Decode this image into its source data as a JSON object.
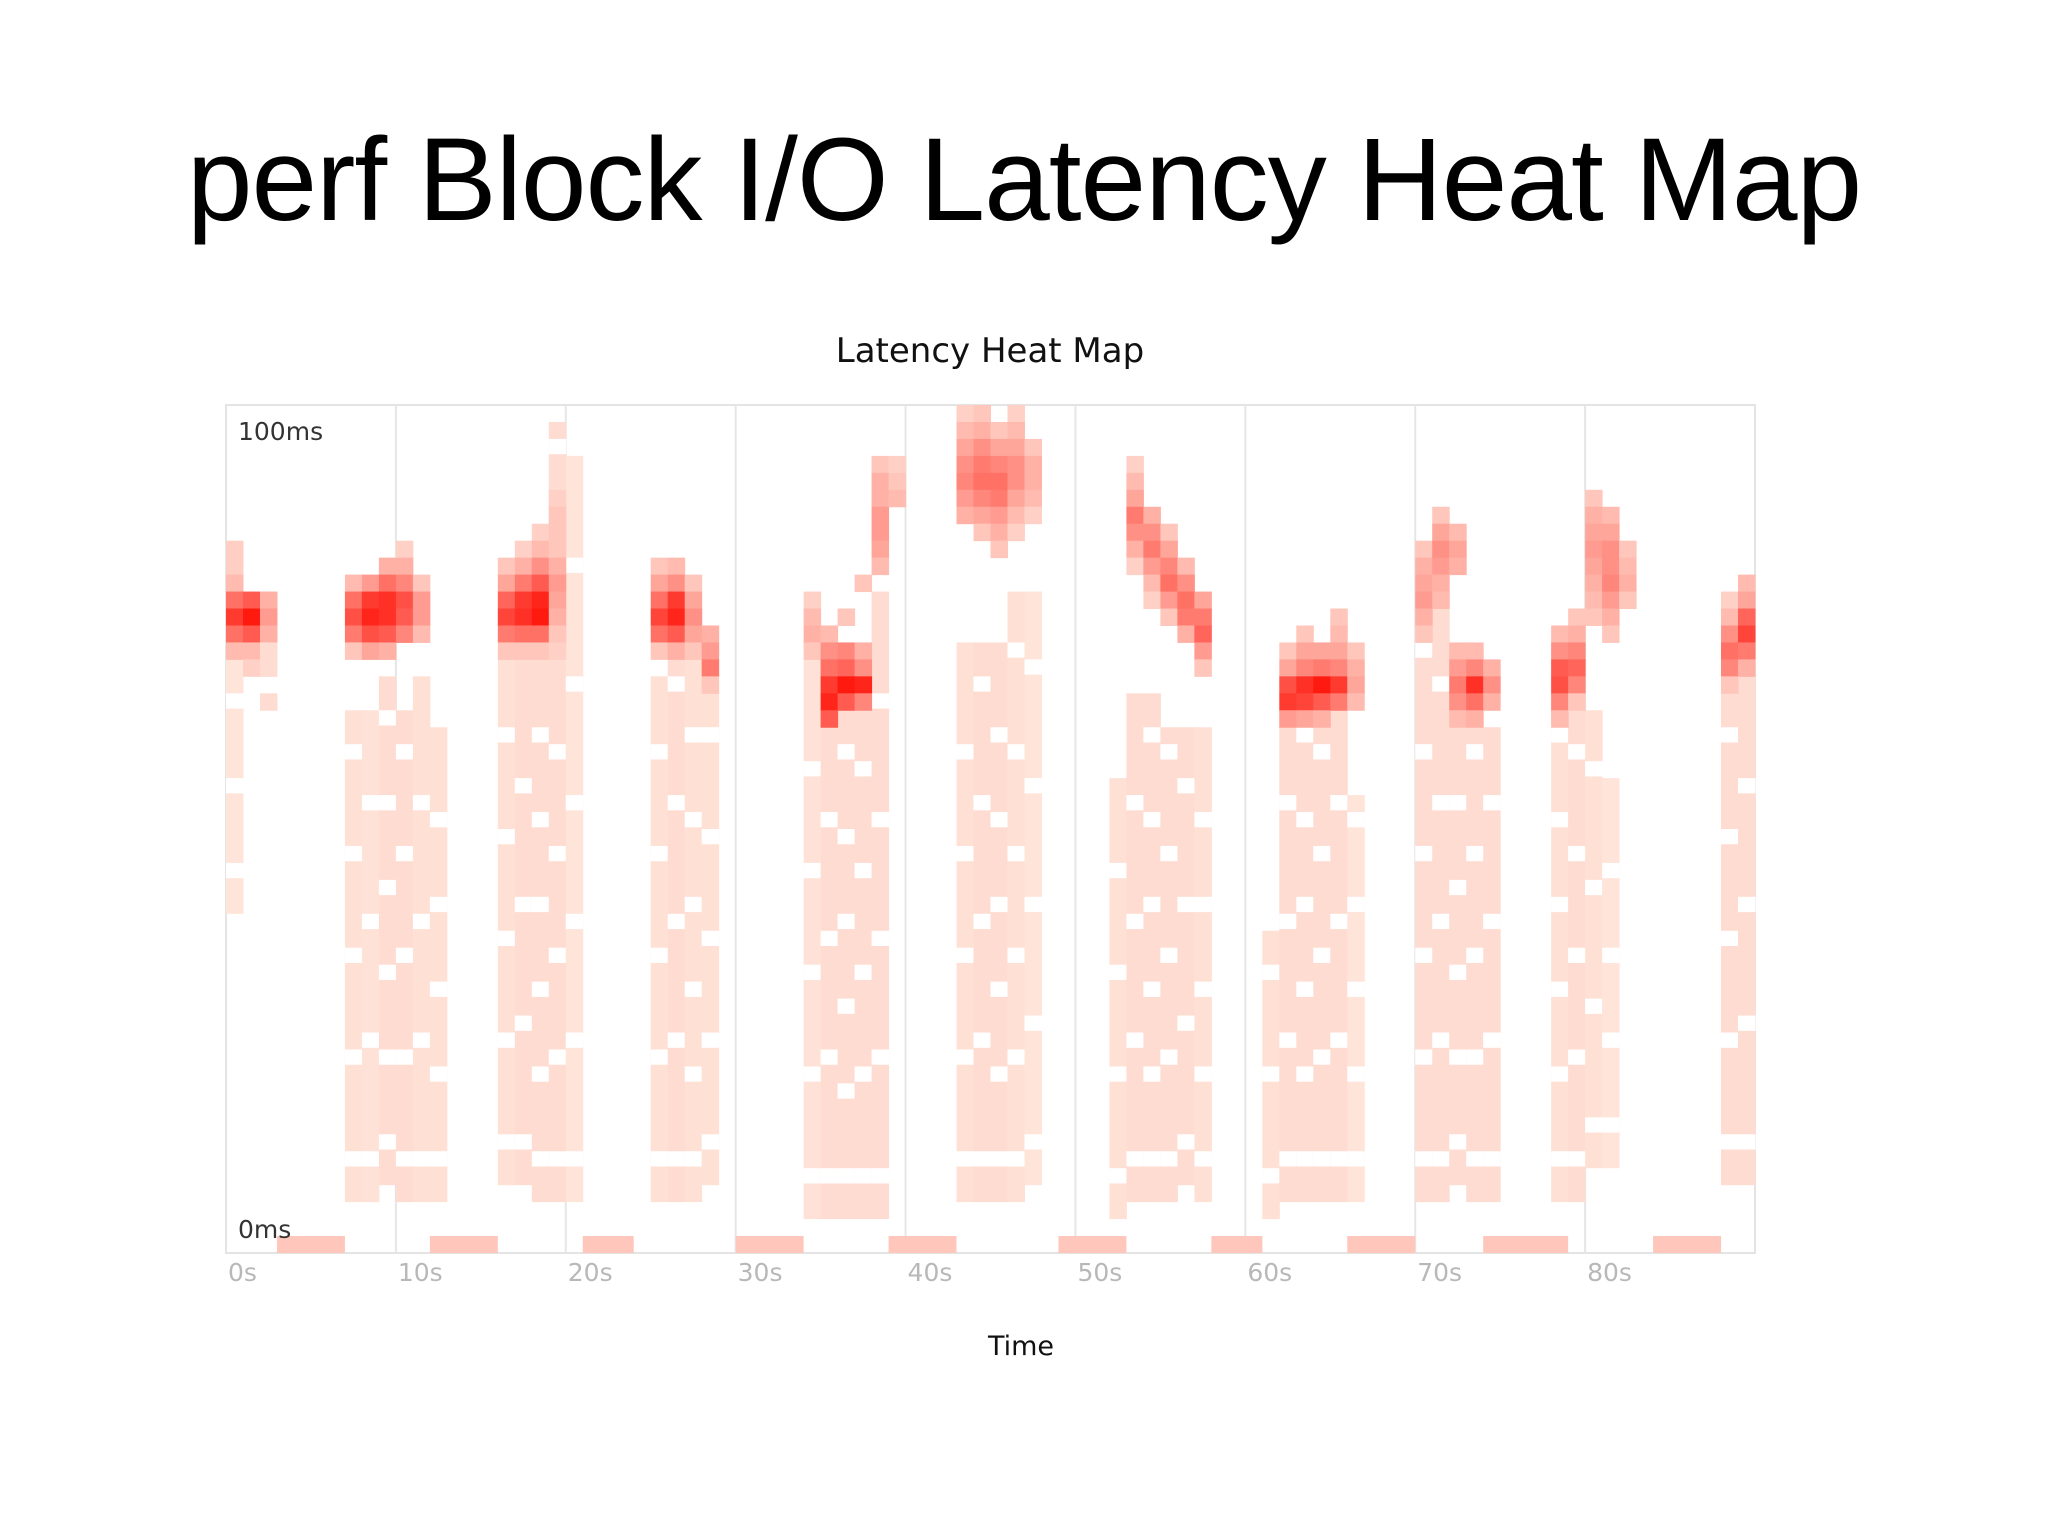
{
  "slide": {
    "title": "perf Block I/O Latency Heat Map"
  },
  "chart_data": {
    "type": "heatmap",
    "title": "Latency Heat Map",
    "xlabel": "Time",
    "ylabel": "",
    "x_range_s": [
      0,
      90
    ],
    "y_range_ms": [
      0,
      100
    ],
    "x_ticks": [
      "0s",
      "10s",
      "20s",
      "30s",
      "40s",
      "50s",
      "60s",
      "70s",
      "80s"
    ],
    "y_labels": {
      "top": "100ms",
      "bottom": "0ms"
    },
    "grid": true,
    "color_scale": {
      "low": "#fff1e6",
      "high": "#ff1a0f"
    },
    "time_bins": 90,
    "latency_bins": 50,
    "cells": [
      [
        0,
        41,
        0.16
      ],
      [
        0,
        40,
        0.16
      ],
      [
        0,
        39,
        0.25
      ],
      [
        0,
        38,
        0.6
      ],
      [
        0,
        37,
        0.85
      ],
      [
        0,
        36,
        0.6
      ],
      [
        0,
        35,
        0.25
      ],
      [
        1,
        38,
        0.7
      ],
      [
        1,
        37,
        1.0
      ],
      [
        1,
        36,
        0.7
      ],
      [
        1,
        35,
        0.25
      ],
      [
        1,
        34,
        0.15
      ],
      [
        2,
        38,
        0.3
      ],
      [
        2,
        37,
        0.4
      ],
      [
        2,
        36,
        0.3
      ],
      [
        2,
        35,
        0.1
      ],
      [
        2,
        34,
        0.1
      ],
      [
        2,
        32,
        0.1
      ],
      [
        7,
        39,
        0.25
      ],
      [
        7,
        38,
        0.6
      ],
      [
        7,
        37,
        0.75
      ],
      [
        7,
        36,
        0.55
      ],
      [
        7,
        35,
        0.2
      ],
      [
        8,
        39,
        0.4
      ],
      [
        8,
        38,
        0.85
      ],
      [
        8,
        37,
        0.95
      ],
      [
        8,
        36,
        0.75
      ],
      [
        8,
        35,
        0.35
      ],
      [
        9,
        40,
        0.3
      ],
      [
        9,
        39,
        0.6
      ],
      [
        9,
        38,
        0.9
      ],
      [
        9,
        37,
        0.9
      ],
      [
        9,
        36,
        0.7
      ],
      [
        9,
        35,
        0.3
      ],
      [
        10,
        41,
        0.15
      ],
      [
        10,
        40,
        0.3
      ],
      [
        10,
        39,
        0.5
      ],
      [
        10,
        38,
        0.75
      ],
      [
        10,
        37,
        0.7
      ],
      [
        10,
        36,
        0.5
      ],
      [
        11,
        39,
        0.2
      ],
      [
        11,
        38,
        0.4
      ],
      [
        11,
        37,
        0.4
      ],
      [
        11,
        36,
        0.25
      ],
      [
        16,
        40,
        0.2
      ],
      [
        16,
        39,
        0.35
      ],
      [
        16,
        38,
        0.65
      ],
      [
        16,
        37,
        0.8
      ],
      [
        16,
        36,
        0.55
      ],
      [
        16,
        35,
        0.2
      ],
      [
        17,
        41,
        0.15
      ],
      [
        17,
        40,
        0.3
      ],
      [
        17,
        39,
        0.55
      ],
      [
        17,
        38,
        0.85
      ],
      [
        17,
        37,
        0.9
      ],
      [
        17,
        36,
        0.6
      ],
      [
        17,
        35,
        0.2
      ],
      [
        18,
        42,
        0.15
      ],
      [
        18,
        41,
        0.25
      ],
      [
        18,
        40,
        0.45
      ],
      [
        18,
        39,
        0.7
      ],
      [
        18,
        38,
        0.95
      ],
      [
        18,
        37,
        1.0
      ],
      [
        18,
        36,
        0.6
      ],
      [
        18,
        35,
        0.2
      ],
      [
        19,
        44,
        0.15
      ],
      [
        19,
        43,
        0.2
      ],
      [
        19,
        42,
        0.2
      ],
      [
        19,
        41,
        0.2
      ],
      [
        19,
        40,
        0.3
      ],
      [
        19,
        39,
        0.4
      ],
      [
        19,
        38,
        0.35
      ],
      [
        19,
        37,
        0.3
      ],
      [
        19,
        36,
        0.2
      ],
      [
        19,
        35,
        0.15
      ],
      [
        25,
        40,
        0.2
      ],
      [
        25,
        39,
        0.35
      ],
      [
        25,
        38,
        0.6
      ],
      [
        25,
        37,
        0.8
      ],
      [
        25,
        36,
        0.6
      ],
      [
        25,
        35,
        0.2
      ],
      [
        26,
        40,
        0.25
      ],
      [
        26,
        39,
        0.45
      ],
      [
        26,
        38,
        0.85
      ],
      [
        26,
        37,
        0.95
      ],
      [
        26,
        36,
        0.7
      ],
      [
        26,
        35,
        0.3
      ],
      [
        27,
        39,
        0.2
      ],
      [
        27,
        38,
        0.35
      ],
      [
        27,
        37,
        0.45
      ],
      [
        27,
        36,
        0.35
      ],
      [
        27,
        35,
        0.2
      ],
      [
        28,
        36,
        0.3
      ],
      [
        28,
        35,
        0.4
      ],
      [
        28,
        34,
        0.55
      ],
      [
        28,
        33,
        0.2
      ],
      [
        34,
        38,
        0.15
      ],
      [
        34,
        37,
        0.25
      ],
      [
        34,
        36,
        0.3
      ],
      [
        34,
        35,
        0.2
      ],
      [
        35,
        36,
        0.25
      ],
      [
        35,
        35,
        0.45
      ],
      [
        35,
        34,
        0.6
      ],
      [
        35,
        33,
        0.85
      ],
      [
        35,
        32,
        0.95
      ],
      [
        35,
        31,
        0.7
      ],
      [
        36,
        37,
        0.2
      ],
      [
        36,
        35,
        0.5
      ],
      [
        36,
        34,
        0.65
      ],
      [
        36,
        33,
        1.0
      ],
      [
        36,
        32,
        0.7
      ],
      [
        37,
        39,
        0.2
      ],
      [
        37,
        35,
        0.3
      ],
      [
        37,
        34,
        0.45
      ],
      [
        37,
        33,
        0.95
      ],
      [
        37,
        32,
        0.5
      ],
      [
        38,
        46,
        0.2
      ],
      [
        38,
        45,
        0.3
      ],
      [
        38,
        44,
        0.3
      ],
      [
        38,
        43,
        0.4
      ],
      [
        38,
        42,
        0.4
      ],
      [
        38,
        41,
        0.35
      ],
      [
        38,
        40,
        0.25
      ],
      [
        39,
        46,
        0.15
      ],
      [
        39,
        45,
        0.2
      ],
      [
        39,
        44,
        0.25
      ],
      [
        43,
        49,
        0.15
      ],
      [
        43,
        48,
        0.25
      ],
      [
        43,
        47,
        0.35
      ],
      [
        43,
        46,
        0.45
      ],
      [
        43,
        45,
        0.5
      ],
      [
        43,
        44,
        0.4
      ],
      [
        43,
        43,
        0.3
      ],
      [
        44,
        49,
        0.2
      ],
      [
        44,
        48,
        0.3
      ],
      [
        44,
        47,
        0.45
      ],
      [
        44,
        46,
        0.55
      ],
      [
        44,
        45,
        0.6
      ],
      [
        44,
        44,
        0.5
      ],
      [
        44,
        43,
        0.35
      ],
      [
        44,
        42,
        0.2
      ],
      [
        45,
        48,
        0.2
      ],
      [
        45,
        47,
        0.35
      ],
      [
        45,
        46,
        0.5
      ],
      [
        45,
        45,
        0.6
      ],
      [
        45,
        44,
        0.55
      ],
      [
        45,
        43,
        0.4
      ],
      [
        45,
        42,
        0.3
      ],
      [
        45,
        41,
        0.2
      ],
      [
        46,
        49,
        0.15
      ],
      [
        46,
        48,
        0.25
      ],
      [
        46,
        47,
        0.35
      ],
      [
        46,
        46,
        0.45
      ],
      [
        46,
        45,
        0.45
      ],
      [
        46,
        44,
        0.35
      ],
      [
        46,
        43,
        0.25
      ],
      [
        46,
        42,
        0.15
      ],
      [
        47,
        47,
        0.2
      ],
      [
        47,
        46,
        0.3
      ],
      [
        47,
        45,
        0.3
      ],
      [
        47,
        44,
        0.25
      ],
      [
        47,
        43,
        0.15
      ],
      [
        53,
        46,
        0.15
      ],
      [
        53,
        45,
        0.25
      ],
      [
        53,
        44,
        0.35
      ],
      [
        53,
        43,
        0.55
      ],
      [
        53,
        42,
        0.45
      ],
      [
        53,
        41,
        0.3
      ],
      [
        53,
        40,
        0.15
      ],
      [
        54,
        43,
        0.3
      ],
      [
        54,
        42,
        0.45
      ],
      [
        54,
        41,
        0.55
      ],
      [
        54,
        40,
        0.4
      ],
      [
        54,
        39,
        0.25
      ],
      [
        54,
        38,
        0.15
      ],
      [
        55,
        42,
        0.2
      ],
      [
        55,
        41,
        0.35
      ],
      [
        55,
        40,
        0.5
      ],
      [
        55,
        39,
        0.6
      ],
      [
        55,
        38,
        0.4
      ],
      [
        55,
        37,
        0.2
      ],
      [
        56,
        40,
        0.25
      ],
      [
        56,
        39,
        0.45
      ],
      [
        56,
        38,
        0.6
      ],
      [
        56,
        37,
        0.55
      ],
      [
        56,
        36,
        0.3
      ],
      [
        57,
        38,
        0.35
      ],
      [
        57,
        37,
        0.55
      ],
      [
        57,
        36,
        0.65
      ],
      [
        57,
        35,
        0.4
      ],
      [
        57,
        34,
        0.2
      ],
      [
        62,
        35,
        0.2
      ],
      [
        62,
        34,
        0.35
      ],
      [
        62,
        33,
        0.75
      ],
      [
        62,
        32,
        0.85
      ],
      [
        62,
        31,
        0.4
      ],
      [
        63,
        36,
        0.2
      ],
      [
        63,
        35,
        0.35
      ],
      [
        63,
        34,
        0.5
      ],
      [
        63,
        33,
        0.9
      ],
      [
        63,
        32,
        0.8
      ],
      [
        63,
        31,
        0.35
      ],
      [
        64,
        35,
        0.35
      ],
      [
        64,
        34,
        0.55
      ],
      [
        64,
        33,
        1.0
      ],
      [
        64,
        32,
        0.7
      ],
      [
        64,
        31,
        0.3
      ],
      [
        65,
        37,
        0.2
      ],
      [
        65,
        36,
        0.25
      ],
      [
        65,
        35,
        0.35
      ],
      [
        65,
        34,
        0.5
      ],
      [
        65,
        33,
        0.85
      ],
      [
        65,
        32,
        0.55
      ],
      [
        66,
        35,
        0.2
      ],
      [
        66,
        34,
        0.3
      ],
      [
        66,
        33,
        0.35
      ],
      [
        66,
        32,
        0.25
      ],
      [
        70,
        41,
        0.2
      ],
      [
        70,
        40,
        0.3
      ],
      [
        70,
        39,
        0.35
      ],
      [
        70,
        38,
        0.4
      ],
      [
        70,
        37,
        0.3
      ],
      [
        70,
        36,
        0.2
      ],
      [
        71,
        43,
        0.2
      ],
      [
        71,
        42,
        0.35
      ],
      [
        71,
        41,
        0.45
      ],
      [
        71,
        40,
        0.4
      ],
      [
        71,
        39,
        0.3
      ],
      [
        71,
        38,
        0.25
      ],
      [
        72,
        42,
        0.25
      ],
      [
        72,
        41,
        0.35
      ],
      [
        72,
        40,
        0.3
      ],
      [
        72,
        35,
        0.25
      ],
      [
        72,
        34,
        0.4
      ],
      [
        72,
        33,
        0.55
      ],
      [
        72,
        32,
        0.45
      ],
      [
        72,
        31,
        0.25
      ],
      [
        73,
        35,
        0.25
      ],
      [
        73,
        34,
        0.5
      ],
      [
        73,
        33,
        0.9
      ],
      [
        73,
        32,
        0.6
      ],
      [
        73,
        31,
        0.3
      ],
      [
        74,
        34,
        0.3
      ],
      [
        74,
        33,
        0.45
      ],
      [
        74,
        32,
        0.3
      ],
      [
        78,
        36,
        0.25
      ],
      [
        78,
        35,
        0.45
      ],
      [
        78,
        34,
        0.7
      ],
      [
        78,
        33,
        0.75
      ],
      [
        78,
        32,
        0.5
      ],
      [
        78,
        31,
        0.25
      ],
      [
        79,
        37,
        0.2
      ],
      [
        79,
        36,
        0.3
      ],
      [
        79,
        35,
        0.5
      ],
      [
        79,
        34,
        0.65
      ],
      [
        79,
        33,
        0.5
      ],
      [
        79,
        32,
        0.2
      ],
      [
        80,
        44,
        0.2
      ],
      [
        80,
        43,
        0.3
      ],
      [
        80,
        42,
        0.35
      ],
      [
        80,
        41,
        0.4
      ],
      [
        80,
        40,
        0.35
      ],
      [
        80,
        39,
        0.3
      ],
      [
        80,
        38,
        0.25
      ],
      [
        80,
        37,
        0.2
      ],
      [
        81,
        43,
        0.25
      ],
      [
        81,
        42,
        0.35
      ],
      [
        81,
        41,
        0.45
      ],
      [
        81,
        40,
        0.45
      ],
      [
        81,
        39,
        0.5
      ],
      [
        81,
        38,
        0.4
      ],
      [
        81,
        37,
        0.3
      ],
      [
        81,
        36,
        0.2
      ],
      [
        82,
        41,
        0.2
      ],
      [
        82,
        40,
        0.25
      ],
      [
        82,
        39,
        0.3
      ],
      [
        82,
        38,
        0.2
      ],
      [
        88,
        38,
        0.15
      ],
      [
        88,
        37,
        0.25
      ],
      [
        88,
        36,
        0.45
      ],
      [
        88,
        35,
        0.6
      ],
      [
        88,
        34,
        0.5
      ],
      [
        88,
        33,
        0.2
      ],
      [
        89,
        39,
        0.25
      ],
      [
        89,
        38,
        0.35
      ],
      [
        89,
        37,
        0.65
      ],
      [
        89,
        36,
        0.8
      ],
      [
        89,
        35,
        0.55
      ],
      [
        89,
        34,
        0.3
      ]
    ],
    "tall_columns": [
      [
        0,
        20,
        34,
        0.06
      ],
      [
        7,
        3,
        31,
        0.08
      ],
      [
        8,
        3,
        31,
        0.07
      ],
      [
        9,
        4,
        33,
        0.1
      ],
      [
        10,
        3,
        31,
        0.1
      ],
      [
        11,
        3,
        33,
        0.08
      ],
      [
        12,
        3,
        30,
        0.08
      ],
      [
        16,
        4,
        34,
        0.08
      ],
      [
        17,
        4,
        34,
        0.1
      ],
      [
        18,
        3,
        34,
        0.1
      ],
      [
        19,
        3,
        48,
        0.1
      ],
      [
        20,
        3,
        46,
        0.06
      ],
      [
        25,
        3,
        33,
        0.08
      ],
      [
        26,
        3,
        34,
        0.1
      ],
      [
        27,
        3,
        34,
        0.08
      ],
      [
        28,
        4,
        32,
        0.08
      ],
      [
        34,
        2,
        34,
        0.07
      ],
      [
        35,
        2,
        31,
        0.1
      ],
      [
        36,
        2,
        31,
        0.1
      ],
      [
        37,
        2,
        31,
        0.1
      ],
      [
        38,
        2,
        38,
        0.1
      ],
      [
        43,
        3,
        35,
        0.08
      ],
      [
        44,
        3,
        35,
        0.1
      ],
      [
        45,
        3,
        35,
        0.1
      ],
      [
        46,
        3,
        38,
        0.08
      ],
      [
        47,
        4,
        38,
        0.06
      ],
      [
        52,
        2,
        27,
        0.08
      ],
      [
        53,
        3,
        32,
        0.1
      ],
      [
        54,
        3,
        32,
        0.1
      ],
      [
        55,
        3,
        30,
        0.1
      ],
      [
        56,
        4,
        30,
        0.1
      ],
      [
        57,
        3,
        30,
        0.08
      ],
      [
        61,
        2,
        18,
        0.08
      ],
      [
        62,
        3,
        31,
        0.1
      ],
      [
        63,
        3,
        31,
        0.1
      ],
      [
        64,
        3,
        31,
        0.1
      ],
      [
        65,
        3,
        31,
        0.1
      ],
      [
        66,
        3,
        26,
        0.06
      ],
      [
        70,
        3,
        36,
        0.1
      ],
      [
        71,
        3,
        38,
        0.1
      ],
      [
        72,
        4,
        31,
        0.1
      ],
      [
        73,
        3,
        30,
        0.1
      ],
      [
        74,
        3,
        30,
        0.1
      ],
      [
        78,
        3,
        31,
        0.08
      ],
      [
        79,
        3,
        31,
        0.1
      ],
      [
        80,
        5,
        31,
        0.08
      ],
      [
        81,
        5,
        27,
        0.06
      ],
      [
        88,
        4,
        33,
        0.1
      ],
      [
        89,
        4,
        33,
        0.1
      ]
    ],
    "bottom_segments": [
      [
        3,
        7
      ],
      [
        12,
        16
      ],
      [
        21,
        24
      ],
      [
        30,
        34
      ],
      [
        39,
        43
      ],
      [
        49,
        53
      ],
      [
        58,
        61
      ],
      [
        66,
        70
      ],
      [
        74,
        79
      ],
      [
        84,
        88
      ]
    ]
  }
}
